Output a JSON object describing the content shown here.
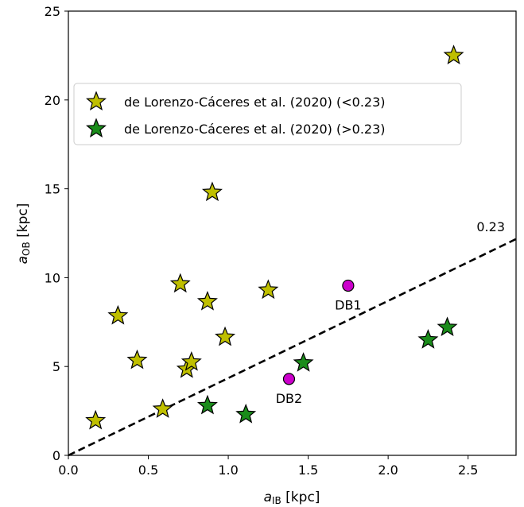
{
  "chart_data": {
    "type": "scatter",
    "title": "",
    "xlabel_main": "a",
    "xlabel_sub": "IB",
    "xlabel_unit": " [kpc]",
    "ylabel_main": "a",
    "ylabel_sub": "OB",
    "ylabel_unit": " [kpc]",
    "xlim": [
      0,
      2.8
    ],
    "ylim": [
      0,
      25
    ],
    "xticks": [
      0.0,
      0.5,
      1.0,
      1.5,
      2.0,
      2.5
    ],
    "xtick_labels": [
      "0.0",
      "0.5",
      "1.0",
      "1.5",
      "2.0",
      "2.5"
    ],
    "yticks": [
      0,
      5,
      10,
      15,
      20,
      25
    ],
    "ytick_labels": [
      "0",
      "5",
      "10",
      "15",
      "20",
      "25"
    ],
    "grid": false,
    "legend_position": "upper-left",
    "series": [
      {
        "name": "de Lorenzo-Cáceres et al. (2020) (<0.23)",
        "marker": "star",
        "color": "#bfbf00",
        "points": [
          [
            0.17,
            1.95
          ],
          [
            0.31,
            7.85
          ],
          [
            0.43,
            5.35
          ],
          [
            0.59,
            2.6
          ],
          [
            0.7,
            9.65
          ],
          [
            0.74,
            4.85
          ],
          [
            0.77,
            5.25
          ],
          [
            0.87,
            8.65
          ],
          [
            0.9,
            14.8
          ],
          [
            0.98,
            6.65
          ],
          [
            1.25,
            9.3
          ],
          [
            2.41,
            22.5
          ]
        ]
      },
      {
        "name": "de Lorenzo-Cáceres et al. (2020) (>0.23)",
        "marker": "star",
        "color": "#1a8c1a",
        "points": [
          [
            0.87,
            2.8
          ],
          [
            1.11,
            2.3
          ],
          [
            1.47,
            5.2
          ],
          [
            2.25,
            6.5
          ],
          [
            2.37,
            7.2
          ]
        ]
      }
    ],
    "highlighted_points": [
      {
        "label": "DB1",
        "x": 1.75,
        "y": 9.55,
        "color": "#cc00cc"
      },
      {
        "label": "DB2",
        "x": 1.38,
        "y": 4.3,
        "color": "#cc00cc"
      }
    ],
    "reference_line": {
      "slope": 0.23,
      "label": "0.23",
      "style": "dashed",
      "color": "#000000"
    }
  }
}
